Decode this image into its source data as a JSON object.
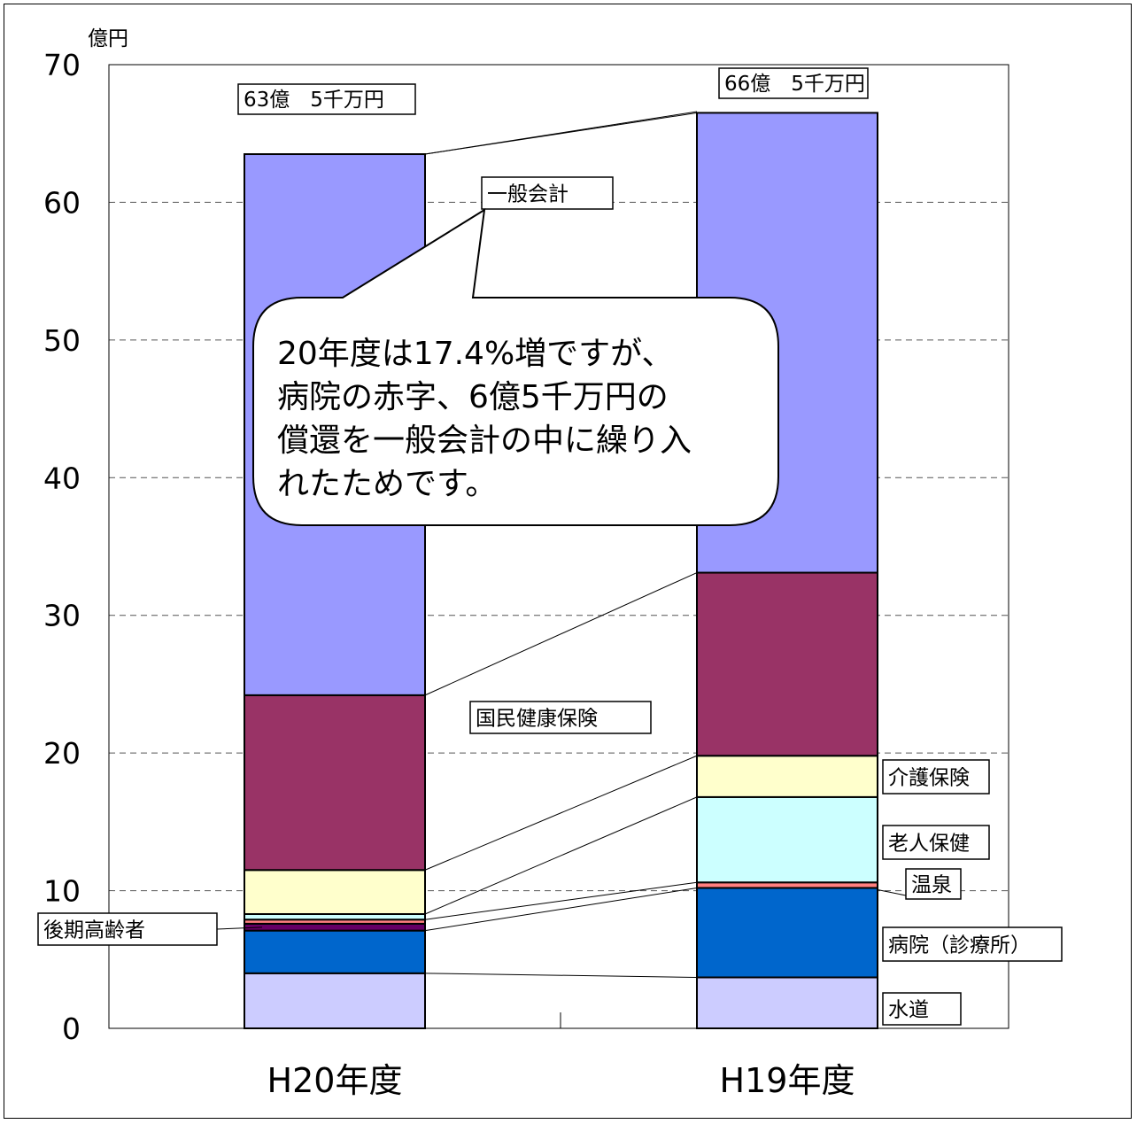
{
  "chart_data": {
    "type": "bar",
    "stacked": true,
    "unit": "億円",
    "ylim": [
      0,
      70
    ],
    "yticks": [
      0,
      10,
      20,
      30,
      40,
      50,
      60,
      70
    ],
    "grid": true,
    "categories": [
      "H20年度",
      "H19年度"
    ],
    "series": [
      {
        "name": "水道",
        "values": [
          4.0,
          3.7
        ],
        "color": "#ccccff"
      },
      {
        "name": "病院（診療所）",
        "values": [
          3.1,
          6.5
        ],
        "color": "#0066cc"
      },
      {
        "name": "後期高齢者",
        "values": [
          0.5,
          0.0
        ],
        "color": "#660066"
      },
      {
        "name": "温泉",
        "values": [
          0.3,
          0.4
        ],
        "color": "#ff8080"
      },
      {
        "name": "老人保健",
        "values": [
          0.4,
          6.2
        ],
        "color": "#ccffff"
      },
      {
        "name": "介護保険",
        "values": [
          3.2,
          3.0
        ],
        "color": "#ffffcc"
      },
      {
        "name": "国民健康保険",
        "values": [
          12.7,
          13.3
        ],
        "color": "#993366"
      },
      {
        "name": "一般会計",
        "values": [
          39.3,
          33.4
        ],
        "color": "#9999ff"
      }
    ],
    "totals": [
      63.5,
      66.5
    ],
    "total_labels": [
      "63億　5千万円",
      "66億　5千万円"
    ],
    "annotation": [
      "20年度は17.4%増ですが、",
      "病院の赤字、6億5千万円の",
      "償還を一般会計の中に繰り入",
      "れたためです。"
    ]
  }
}
